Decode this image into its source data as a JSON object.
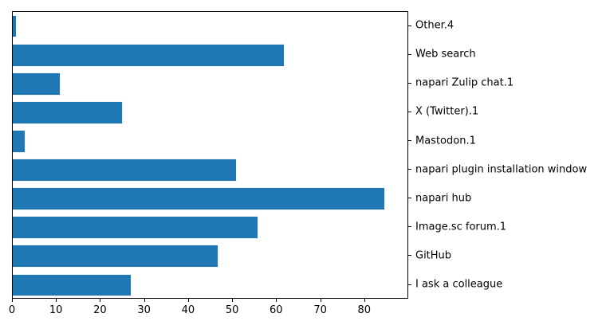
{
  "chart_data": {
    "type": "bar",
    "orientation": "horizontal",
    "title": "",
    "xlabel": "",
    "ylabel": "",
    "categories": [
      "Other.4",
      "Web search",
      "napari Zulip chat.1",
      "X (Twitter).1",
      "Mastodon.1",
      "napari plugin installation window",
      "napari hub",
      "Image.sc forum.1",
      "GitHub",
      "I ask a colleague"
    ],
    "values": [
      1,
      62,
      11,
      25,
      3,
      51,
      85,
      56,
      47,
      27
    ],
    "xlim": [
      0,
      90
    ],
    "x_ticks": [
      0,
      10,
      20,
      30,
      40,
      50,
      60,
      70,
      80
    ],
    "grid": false,
    "legend": false,
    "ytick_side": "right",
    "bar_color": "#1f77b4",
    "bar_edge_color": "#eef4fa",
    "spine_color": "#000000",
    "background_color": "#ffffff"
  }
}
